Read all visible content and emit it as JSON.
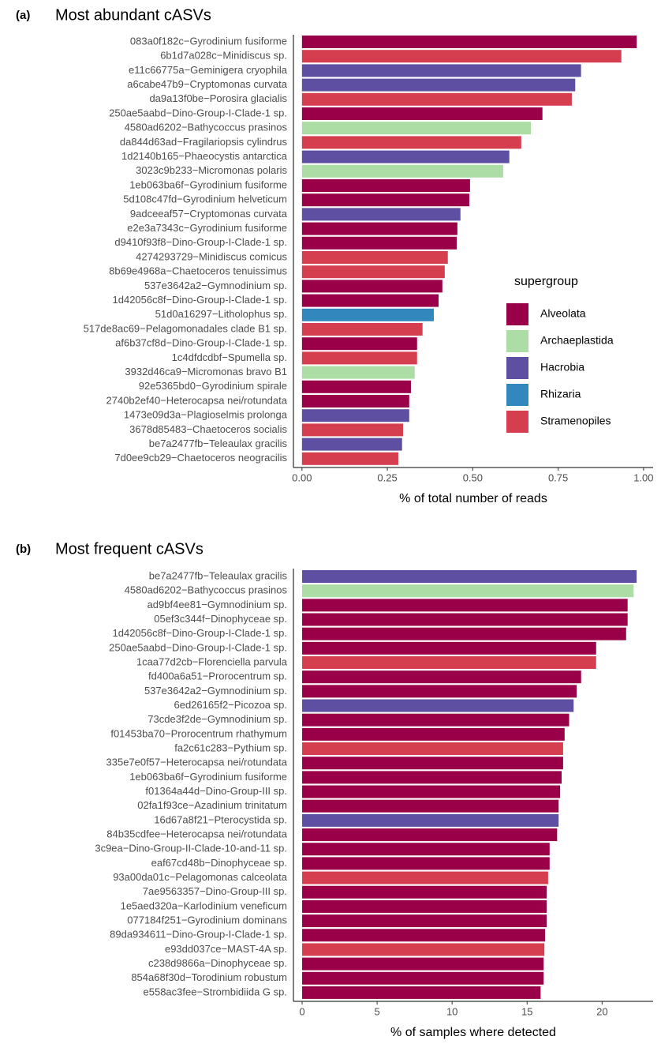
{
  "chart_data": [
    {
      "type": "bar",
      "panel": "(a)",
      "title": "Most abundant cASVs",
      "xlabel": "% of total number of reads",
      "categories": [
        "083a0f182c−Gyrodinium fusiforme",
        "6b1d7a028c−Minidiscus sp.",
        "e11c66775a−Geminigera cryophila",
        "a6cabe47b9−Cryptomonas curvata",
        "da9a13f0be−Porosira glacialis",
        "250ae5aabd−Dino-Group-I-Clade-1 sp.",
        "4580ad6202−Bathycoccus prasinos",
        "da844d63ad−Fragilariopsis cylindrus",
        "1d2140b165−Phaeocystis antarctica",
        "3023c9b233−Micromonas polaris",
        "1eb063ba6f−Gyrodinium fusiforme",
        "5d108c47fd−Gyrodinium helveticum",
        "9adceeaf57−Cryptomonas curvata",
        "e2e3a7343c−Gyrodinium fusiforme",
        "d9410f93f8−Dino-Group-I-Clade-1 sp.",
        "4274293729−Minidiscus comicus",
        "8b69e4968a−Chaetoceros tenuissimus",
        "537e3642a2−Gymnodinium sp.",
        "1d42056c8f−Dino-Group-I-Clade-1 sp.",
        "51d0a16297−Litholophus sp.",
        "517de8ac69−Pelagomonadales clade B1 sp.",
        "af6b37cf8d−Dino-Group-I-Clade-1 sp.",
        "1c4dfdcdbf−Spumella sp.",
        "3932d46ca9−Micromonas bravo B1",
        "92e5365bd0−Gyrodinium spirale",
        "2740b2ef40−Heterocapsa nei/rotundata",
        "1473e09d3a−Plagioselmis prolonga",
        "3678d85483−Chaetoceros socialis",
        "be7a2477fb−Teleaulax gracilis",
        "7d0ee9cb29−Chaetoceros neogracilis"
      ],
      "values": [
        0.98,
        0.935,
        0.817,
        0.8,
        0.79,
        0.704,
        0.67,
        0.642,
        0.607,
        0.589,
        0.492,
        0.49,
        0.464,
        0.455,
        0.453,
        0.427,
        0.418,
        0.411,
        0.4,
        0.386,
        0.353,
        0.337,
        0.337,
        0.33,
        0.319,
        0.314,
        0.314,
        0.296,
        0.293,
        0.282
      ],
      "groups": [
        "Alveolata",
        "Stramenopiles",
        "Hacrobia",
        "Hacrobia",
        "Stramenopiles",
        "Alveolata",
        "Archaeplastida",
        "Stramenopiles",
        "Hacrobia",
        "Archaeplastida",
        "Alveolata",
        "Alveolata",
        "Hacrobia",
        "Alveolata",
        "Alveolata",
        "Stramenopiles",
        "Stramenopiles",
        "Alveolata",
        "Alveolata",
        "Rhizaria",
        "Stramenopiles",
        "Alveolata",
        "Stramenopiles",
        "Archaeplastida",
        "Alveolata",
        "Alveolata",
        "Hacrobia",
        "Stramenopiles",
        "Hacrobia",
        "Stramenopiles"
      ],
      "xlim": [
        -0.025,
        1.028
      ],
      "xticks": [
        {
          "value": 0,
          "label": "0.00"
        },
        {
          "value": 0.25,
          "label": "0.25"
        },
        {
          "value": 0.5,
          "label": "0.50"
        },
        {
          "value": 0.75,
          "label": "0.75"
        },
        {
          "value": 1,
          "label": "1.00"
        }
      ],
      "legend": {
        "title": "supergroup",
        "items": [
          {
            "name": "Alveolata",
            "color": "#9a0048"
          },
          {
            "name": "Archaeplastida",
            "color": "#abdda4"
          },
          {
            "name": "Hacrobia",
            "color": "#5e4fa2"
          },
          {
            "name": "Rhizaria",
            "color": "#3288bd"
          },
          {
            "name": "Stramenopiles",
            "color": "#d53e4f"
          }
        ]
      }
    },
    {
      "type": "bar",
      "panel": "(b)",
      "title": "Most frequent cASVs",
      "xlabel": "% of samples where detected",
      "categories": [
        "be7a2477fb−Teleaulax gracilis",
        "4580ad6202−Bathycoccus prasinos",
        "ad9bf4ee81−Gymnodinium sp.",
        "05ef3c344f−Dinophyceae sp.",
        "1d42056c8f−Dino-Group-I-Clade-1 sp.",
        "250ae5aabd−Dino-Group-I-Clade-1 sp.",
        "1caa77d2cb−Florenciella parvula",
        "fd400a6a51−Prorocentrum sp.",
        "537e3642a2−Gymnodinium sp.",
        "6ed26165f2−Picozoa sp.",
        "73cde3f2de−Gymnodinium sp.",
        "f01453ba70−Prorocentrum rhathymum",
        "fa2c61c283−Pythium sp.",
        "335e7e0f57−Heterocapsa nei/rotundata",
        "1eb063ba6f−Gyrodinium fusiforme",
        "f01364a44d−Dino-Group-III sp.",
        "02fa1f93ce−Azadinium trinitatum",
        "16d67a8f21−Pterocystida sp.",
        "84b35cdfee−Heterocapsa nei/rotundata",
        "3c9ea−Dino-Group-II-Clade-10-and-11 sp.",
        "eaf67cd48b−Dinophyceae sp.",
        "93a00da01c−Pelagomonas calceolata",
        "7ae9563357−Dino-Group-III sp.",
        "1e5aed320a−Karlodinium veneficum",
        "077184f251−Gyrodinium dominans",
        "89da934611−Dino-Group-I-Clade-1 sp.",
        "e93dd037ce−MAST-4A sp.",
        "c238d9866a−Dinophyceae sp.",
        "854a68f30d−Torodinium robustum",
        "e558ac3fee−Strombidiida G sp."
      ],
      "values": [
        22.3,
        22.1,
        21.7,
        21.7,
        21.6,
        19.6,
        19.6,
        18.6,
        18.3,
        18.1,
        17.8,
        17.5,
        17.4,
        17.4,
        17.3,
        17.2,
        17.1,
        17.1,
        17.0,
        16.5,
        16.5,
        16.4,
        16.3,
        16.3,
        16.3,
        16.2,
        16.15,
        16.1,
        16.1,
        15.9
      ],
      "groups": [
        "Hacrobia",
        "Archaeplastida",
        "Alveolata",
        "Alveolata",
        "Alveolata",
        "Alveolata",
        "Stramenopiles",
        "Alveolata",
        "Alveolata",
        "Hacrobia",
        "Alveolata",
        "Alveolata",
        "Stramenopiles",
        "Alveolata",
        "Alveolata",
        "Alveolata",
        "Alveolata",
        "Hacrobia",
        "Alveolata",
        "Alveolata",
        "Alveolata",
        "Stramenopiles",
        "Alveolata",
        "Alveolata",
        "Alveolata",
        "Alveolata",
        "Stramenopiles",
        "Alveolata",
        "Alveolata",
        "Alveolata"
      ],
      "xlim": [
        -0.58,
        23.4
      ],
      "xticks": [
        0,
        5,
        10,
        15,
        20
      ]
    }
  ]
}
